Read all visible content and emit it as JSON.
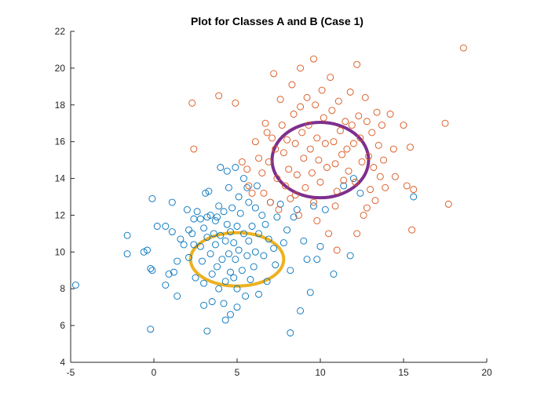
{
  "chart_data": {
    "type": "scatter",
    "title": "Plot for Classes A and B (Case 1)",
    "xlabel": "",
    "ylabel": "",
    "xlim": [
      -5,
      20
    ],
    "ylim": [
      4,
      22
    ],
    "xticks": [
      -5,
      0,
      5,
      10,
      15,
      20
    ],
    "yticks": [
      4,
      6,
      8,
      10,
      12,
      14,
      16,
      18,
      20,
      22
    ],
    "grid": false,
    "legend": "none",
    "series": [
      {
        "color": "#0072BD",
        "marker": "circle-open",
        "points": [
          [
            -4.7,
            8.2
          ],
          [
            -1.6,
            10.9
          ],
          [
            -1.6,
            9.9
          ],
          [
            -0.6,
            10.0
          ],
          [
            -0.4,
            10.1
          ],
          [
            -0.2,
            9.1
          ],
          [
            -0.1,
            9.0
          ],
          [
            -0.2,
            5.8
          ],
          [
            -0.1,
            12.9
          ],
          [
            0.2,
            11.4
          ],
          [
            0.7,
            11.4
          ],
          [
            0.7,
            8.2
          ],
          [
            0.9,
            8.8
          ],
          [
            1.1,
            12.7
          ],
          [
            1.1,
            11.1
          ],
          [
            1.2,
            8.9
          ],
          [
            1.4,
            9.5
          ],
          [
            1.4,
            7.6
          ],
          [
            1.6,
            10.7
          ],
          [
            1.8,
            10.4
          ],
          [
            2.0,
            12.3
          ],
          [
            2.1,
            11.2
          ],
          [
            2.1,
            9.7
          ],
          [
            2.3,
            11.0
          ],
          [
            2.4,
            11.8
          ],
          [
            2.4,
            10.4
          ],
          [
            2.5,
            8.6
          ],
          [
            2.6,
            12.2
          ],
          [
            2.8,
            11.8
          ],
          [
            2.8,
            10.3
          ],
          [
            2.9,
            9.5
          ],
          [
            3.0,
            11.3
          ],
          [
            3.0,
            8.3
          ],
          [
            3.0,
            7.1
          ],
          [
            3.1,
            13.2
          ],
          [
            3.2,
            11.9
          ],
          [
            3.2,
            10.8
          ],
          [
            3.3,
            13.3
          ],
          [
            3.4,
            12.0
          ],
          [
            3.4,
            9.9
          ],
          [
            3.5,
            8.8
          ],
          [
            3.5,
            7.3
          ],
          [
            3.6,
            11.0
          ],
          [
            3.7,
            11.7
          ],
          [
            3.7,
            10.4
          ],
          [
            3.8,
            11.9
          ],
          [
            3.8,
            9.2
          ],
          [
            3.9,
            12.5
          ],
          [
            3.9,
            8.0
          ],
          [
            4.0,
            14.6
          ],
          [
            4.0,
            10.9
          ],
          [
            4.1,
            9.6
          ],
          [
            4.2,
            12.2
          ],
          [
            4.2,
            7.2
          ],
          [
            4.3,
            10.6
          ],
          [
            4.3,
            8.4
          ],
          [
            4.3,
            6.3
          ],
          [
            4.4,
            14.4
          ],
          [
            4.4,
            11.5
          ],
          [
            4.5,
            13.5
          ],
          [
            4.5,
            9.9
          ],
          [
            4.6,
            11.1
          ],
          [
            4.6,
            8.9
          ],
          [
            4.6,
            6.6
          ],
          [
            4.7,
            12.4
          ],
          [
            4.8,
            10.5
          ],
          [
            4.8,
            8.6
          ],
          [
            4.9,
            14.6
          ],
          [
            4.9,
            9.6
          ],
          [
            5.0,
            11.4
          ],
          [
            5.0,
            8.0
          ],
          [
            5.0,
            7.0
          ],
          [
            5.1,
            13.0
          ],
          [
            5.1,
            10.1
          ],
          [
            5.2,
            12.1
          ],
          [
            5.3,
            9.0
          ],
          [
            5.4,
            14.0
          ],
          [
            5.4,
            11.0
          ],
          [
            5.5,
            7.6
          ],
          [
            5.6,
            13.5
          ],
          [
            5.6,
            9.8
          ],
          [
            5.7,
            12.7
          ],
          [
            5.7,
            10.6
          ],
          [
            5.8,
            8.5
          ],
          [
            5.9,
            11.4
          ],
          [
            6.0,
            9.2
          ],
          [
            6.1,
            12.4
          ],
          [
            6.1,
            10.0
          ],
          [
            6.2,
            13.6
          ],
          [
            6.3,
            11.0
          ],
          [
            6.3,
            7.7
          ],
          [
            6.5,
            12.0
          ],
          [
            6.6,
            9.8
          ],
          [
            6.7,
            11.5
          ],
          [
            6.8,
            8.4
          ],
          [
            6.9,
            10.7
          ],
          [
            7.0,
            12.7
          ],
          [
            7.2,
            10.2
          ],
          [
            7.3,
            9.3
          ],
          [
            7.4,
            11.9
          ],
          [
            7.6,
            12.6
          ],
          [
            7.8,
            10.5
          ],
          [
            8.0,
            11.2
          ],
          [
            8.2,
            9.0
          ],
          [
            8.4,
            11.9
          ],
          [
            8.6,
            12.3
          ],
          [
            8.8,
            6.8
          ],
          [
            9.0,
            10.6
          ],
          [
            9.2,
            9.6
          ],
          [
            9.4,
            7.8
          ],
          [
            9.6,
            12.5
          ],
          [
            9.8,
            9.6
          ],
          [
            10.0,
            10.3
          ],
          [
            10.3,
            12.3
          ],
          [
            10.8,
            8.8
          ],
          [
            11.4,
            13.6
          ],
          [
            11.8,
            9.8
          ],
          [
            12.0,
            14.0
          ],
          [
            12.4,
            13.2
          ],
          [
            15.6,
            13.0
          ],
          [
            3.2,
            5.7
          ],
          [
            8.2,
            5.6
          ]
        ]
      },
      {
        "color": "#D95319",
        "marker": "circle-open",
        "points": [
          [
            2.3,
            18.1
          ],
          [
            2.4,
            15.6
          ],
          [
            3.9,
            18.5
          ],
          [
            4.9,
            18.1
          ],
          [
            5.3,
            14.9
          ],
          [
            5.6,
            14.5
          ],
          [
            5.7,
            13.6
          ],
          [
            5.9,
            13.2
          ],
          [
            6.1,
            16.0
          ],
          [
            6.3,
            15.1
          ],
          [
            6.5,
            14.3
          ],
          [
            6.6,
            13.2
          ],
          [
            6.7,
            17.0
          ],
          [
            6.8,
            16.5
          ],
          [
            6.9,
            14.9
          ],
          [
            7.0,
            12.7
          ],
          [
            7.1,
            16.2
          ],
          [
            7.2,
            19.7
          ],
          [
            7.3,
            15.6
          ],
          [
            7.4,
            14.0
          ],
          [
            7.5,
            12.3
          ],
          [
            7.6,
            18.3
          ],
          [
            7.7,
            16.9
          ],
          [
            7.8,
            15.4
          ],
          [
            7.9,
            13.6
          ],
          [
            8.0,
            16.1
          ],
          [
            8.1,
            14.5
          ],
          [
            8.2,
            12.9
          ],
          [
            8.3,
            19.1
          ],
          [
            8.4,
            17.5
          ],
          [
            8.5,
            15.9
          ],
          [
            8.6,
            14.2
          ],
          [
            8.7,
            12.0
          ],
          [
            8.8,
            17.9
          ],
          [
            8.9,
            16.5
          ],
          [
            9.0,
            15.1
          ],
          [
            9.1,
            13.5
          ],
          [
            9.2,
            18.4
          ],
          [
            9.3,
            16.9
          ],
          [
            9.4,
            15.6
          ],
          [
            9.5,
            14.3
          ],
          [
            9.6,
            12.7
          ],
          [
            9.7,
            18.0
          ],
          [
            9.8,
            16.2
          ],
          [
            9.9,
            15.0
          ],
          [
            10.0,
            13.8
          ],
          [
            10.1,
            18.8
          ],
          [
            10.2,
            17.3
          ],
          [
            10.3,
            15.9
          ],
          [
            10.4,
            14.6
          ],
          [
            10.5,
            11.0
          ],
          [
            10.6,
            19.5
          ],
          [
            10.7,
            17.7
          ],
          [
            10.8,
            16.0
          ],
          [
            10.9,
            14.8
          ],
          [
            11.0,
            13.3
          ],
          [
            11.1,
            18.2
          ],
          [
            11.2,
            16.6
          ],
          [
            11.3,
            15.3
          ],
          [
            11.4,
            13.9
          ],
          [
            11.5,
            17.1
          ],
          [
            11.6,
            15.6
          ],
          [
            11.7,
            14.4
          ],
          [
            11.8,
            18.7
          ],
          [
            11.9,
            16.9
          ],
          [
            12.0,
            15.9
          ],
          [
            12.1,
            13.8
          ],
          [
            12.2,
            20.2
          ],
          [
            12.3,
            17.4
          ],
          [
            12.4,
            16.2
          ],
          [
            12.5,
            14.9
          ],
          [
            12.6,
            12.0
          ],
          [
            12.7,
            18.4
          ],
          [
            12.8,
            17.1
          ],
          [
            12.9,
            15.2
          ],
          [
            13.0,
            13.4
          ],
          [
            13.1,
            16.5
          ],
          [
            13.2,
            14.6
          ],
          [
            13.3,
            12.8
          ],
          [
            13.4,
            17.6
          ],
          [
            13.5,
            15.8
          ],
          [
            13.6,
            14.1
          ],
          [
            13.7,
            16.9
          ],
          [
            13.8,
            15.0
          ],
          [
            13.9,
            13.5
          ],
          [
            14.2,
            17.5
          ],
          [
            14.4,
            15.6
          ],
          [
            14.5,
            14.1
          ],
          [
            15.0,
            16.9
          ],
          [
            15.2,
            13.6
          ],
          [
            15.4,
            15.7
          ],
          [
            15.5,
            11.2
          ],
          [
            15.6,
            13.4
          ],
          [
            17.5,
            17.0
          ],
          [
            17.7,
            12.6
          ],
          [
            18.6,
            21.1
          ],
          [
            8.8,
            20.0
          ],
          [
            9.6,
            20.5
          ],
          [
            11.0,
            10.1
          ],
          [
            12.2,
            11.0
          ],
          [
            12.8,
            12.4
          ],
          [
            8.5,
            13.1
          ],
          [
            9.8,
            11.7
          ],
          [
            10.9,
            12.5
          ]
        ]
      }
    ],
    "ellipses": [
      {
        "color": "#EDB120",
        "center": [
          5.0,
          9.6
        ],
        "rx": 2.8,
        "ry": 1.45
      },
      {
        "color": "#7E2F8E",
        "center": [
          10.0,
          15.0
        ],
        "rx": 2.9,
        "ry": 2.05
      }
    ]
  }
}
